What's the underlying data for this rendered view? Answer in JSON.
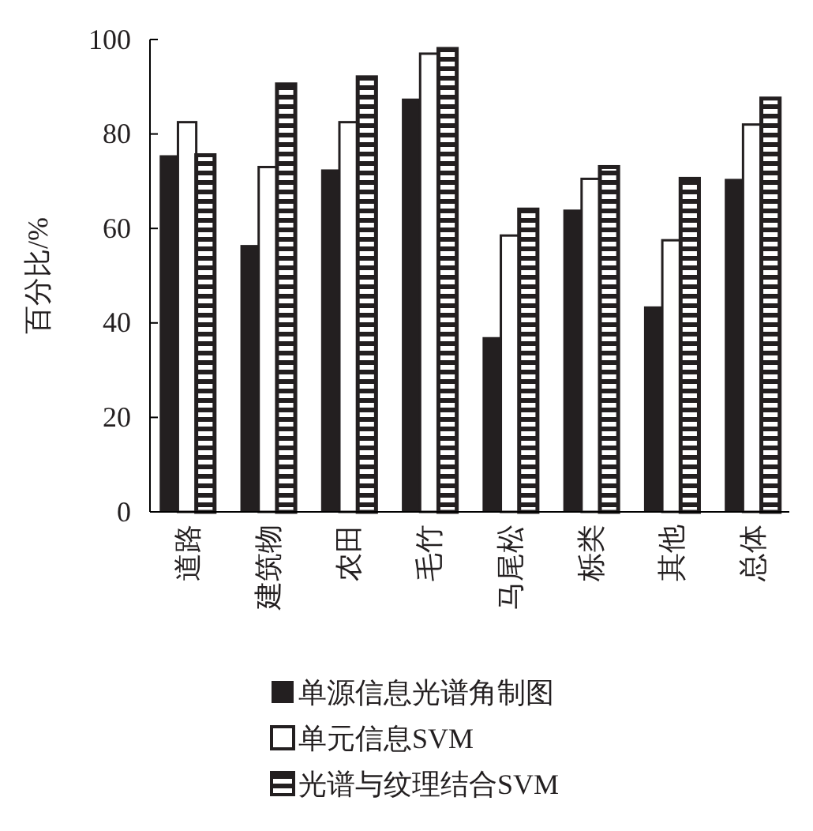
{
  "chart_data": {
    "type": "bar",
    "ylabel": "百分比/%",
    "categories": [
      "道路",
      "建筑物",
      "农田",
      "毛竹",
      "马尾松",
      "栎类",
      "其他",
      "总体"
    ],
    "series": [
      {
        "name": "单源信息光谱角制图",
        "color": "#231f20",
        "values": [
          75.5,
          56.5,
          72.5,
          87.5,
          37,
          64,
          43.5,
          70.5
        ]
      },
      {
        "name": "单元信息SVM",
        "color": "#ffffff",
        "values": [
          82.5,
          73,
          82.5,
          97,
          58.5,
          70.5,
          57.5,
          82
        ]
      },
      {
        "name": "光谱与纹理结合SVM",
        "color": "#231f20",
        "values": [
          75.5,
          90.5,
          92,
          98,
          64,
          73,
          70.5,
          87.5
        ]
      }
    ],
    "ylim": [
      0,
      100
    ],
    "yticks": [
      0,
      20,
      40,
      60,
      80,
      100
    ],
    "grid": false,
    "legend": "bottom"
  }
}
